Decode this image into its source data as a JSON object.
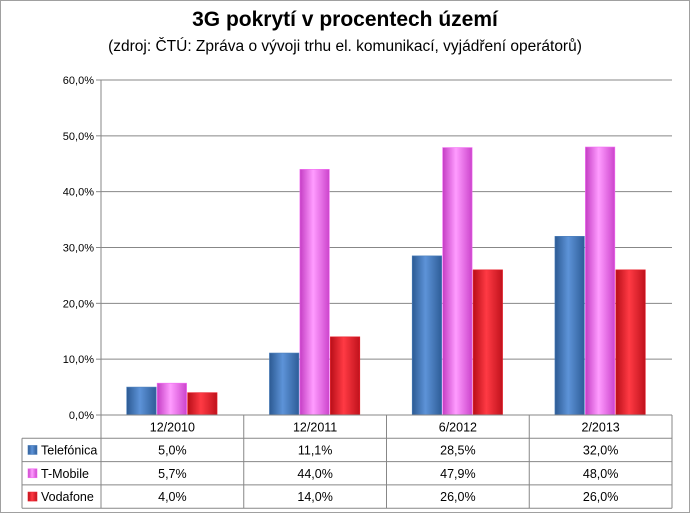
{
  "chart_data": {
    "type": "bar",
    "title": "3G pokrytí v procentech území",
    "subtitle": "(zdroj: ČTÚ: Zpráva o vývoji trhu el. komunikací, vyjádření operátorů)",
    "categories": [
      "12/2010",
      "12/2011",
      "6/2012",
      "2/2013"
    ],
    "series": [
      {
        "name": "Telefónica",
        "values": [
          5.0,
          11.1,
          28.5,
          32.0
        ],
        "labels": [
          "5,0%",
          "11,1%",
          "28,5%",
          "32,0%"
        ],
        "color": "#4a7ebb"
      },
      {
        "name": "T-Mobile",
        "values": [
          5.7,
          44.0,
          47.9,
          48.0
        ],
        "labels": [
          "5,7%",
          "44,0%",
          "47,9%",
          "48,0%"
        ],
        "color": "#f36ef3"
      },
      {
        "name": "Vodafone",
        "values": [
          4.0,
          14.0,
          26.0,
          26.0
        ],
        "labels": [
          "4,0%",
          "14,0%",
          "26,0%",
          "26,0%"
        ],
        "color": "#e81e2a"
      }
    ],
    "yticks": [
      "0,0%",
      "10,0%",
      "20,0%",
      "30,0%",
      "40,0%",
      "50,0%",
      "60,0%"
    ],
    "ylim": [
      0,
      60
    ],
    "grid": true,
    "legend": "data-table"
  }
}
